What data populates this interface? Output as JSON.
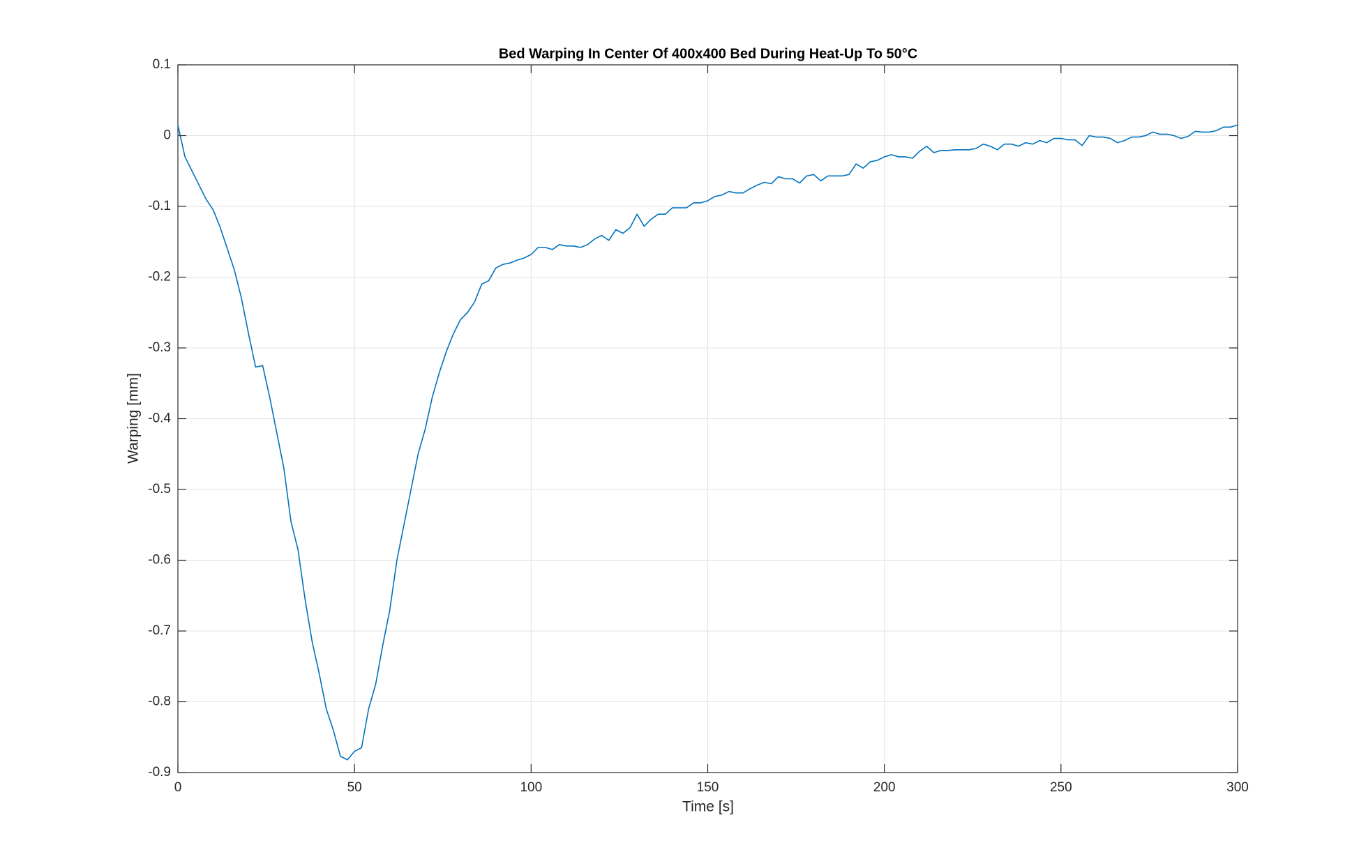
{
  "chart_data": {
    "type": "line",
    "title": "Bed Warping In Center Of 400x400 Bed During Heat-Up To 50°C",
    "x_label": "Time [s]",
    "y_label": "Warping [mm]",
    "x": [
      0,
      2,
      4,
      6,
      8,
      10,
      12,
      14,
      16,
      18,
      20,
      22,
      24,
      26,
      28,
      30,
      32,
      34,
      36,
      38,
      40,
      42,
      44,
      46,
      48,
      50,
      52,
      54,
      56,
      58,
      60,
      62,
      64,
      66,
      68,
      70,
      72,
      74,
      76,
      78,
      80,
      82,
      84,
      86,
      88,
      90,
      92,
      94,
      96,
      98,
      100,
      102,
      104,
      106,
      108,
      110,
      112,
      114,
      116,
      118,
      120,
      122,
      124,
      126,
      128,
      130,
      132,
      134,
      136,
      138,
      140,
      142,
      144,
      146,
      148,
      150,
      152,
      154,
      156,
      158,
      160,
      162,
      164,
      166,
      168,
      170,
      172,
      174,
      176,
      178,
      180,
      182,
      184,
      186,
      188,
      190,
      192,
      194,
      196,
      198,
      200,
      202,
      204,
      206,
      208,
      210,
      212,
      214,
      216,
      218,
      220,
      222,
      224,
      226,
      228,
      230,
      232,
      234,
      236,
      238,
      240,
      242,
      244,
      246,
      248,
      250,
      252,
      254,
      256,
      258,
      260,
      262,
      264,
      266,
      268,
      270,
      272,
      274,
      276,
      278,
      280,
      282,
      284,
      286,
      288,
      290,
      292,
      294,
      296,
      298,
      300
    ],
    "series": [
      {
        "color": "#0072bd",
        "values": [
          0.015,
          -0.03,
          -0.05,
          -0.07,
          -0.09,
          -0.105,
          -0.13,
          -0.16,
          -0.19,
          -0.23,
          -0.28,
          -0.327,
          -0.325,
          -0.37,
          -0.42,
          -0.47,
          -0.545,
          -0.585,
          -0.655,
          -0.715,
          -0.76,
          -0.81,
          -0.84,
          -0.877,
          -0.882,
          -0.87,
          -0.865,
          -0.81,
          -0.775,
          -0.72,
          -0.67,
          -0.6,
          -0.55,
          -0.5,
          -0.45,
          -0.415,
          -0.37,
          -0.335,
          -0.305,
          -0.28,
          -0.26,
          -0.25,
          -0.235,
          -0.21,
          -0.205,
          -0.187,
          -0.182,
          -0.18,
          -0.176,
          -0.173,
          -0.168,
          -0.158,
          -0.158,
          -0.161,
          -0.154,
          -0.156,
          -0.156,
          -0.158,
          -0.154,
          -0.146,
          -0.141,
          -0.148,
          -0.133,
          -0.138,
          -0.13,
          -0.111,
          -0.128,
          -0.118,
          -0.111,
          -0.111,
          -0.102,
          -0.102,
          -0.102,
          -0.095,
          -0.095,
          -0.092,
          -0.086,
          -0.084,
          -0.079,
          -0.081,
          -0.081,
          -0.075,
          -0.07,
          -0.066,
          -0.068,
          -0.058,
          -0.061,
          -0.061,
          -0.067,
          -0.057,
          -0.055,
          -0.064,
          -0.057,
          -0.057,
          -0.057,
          -0.055,
          -0.04,
          -0.046,
          -0.037,
          -0.035,
          -0.03,
          -0.027,
          -0.03,
          -0.03,
          -0.032,
          -0.022,
          -0.015,
          -0.024,
          -0.021,
          -0.021,
          -0.02,
          -0.02,
          -0.02,
          -0.018,
          -0.012,
          -0.015,
          -0.02,
          -0.012,
          -0.012,
          -0.015,
          -0.01,
          -0.012,
          -0.007,
          -0.01,
          -0.004,
          -0.004,
          -0.006,
          -0.006,
          -0.014,
          0,
          -0.002,
          -0.002,
          -0.004,
          -0.01,
          -0.007,
          -0.002,
          -0.002,
          0,
          0.005,
          0.002,
          0.002,
          0,
          -0.004,
          -0.001,
          0.006,
          0.005,
          0.005,
          0.007,
          0.012,
          0.012,
          0.015
        ]
      }
    ],
    "xlim": [
      0,
      300
    ],
    "xticks": [
      0,
      50,
      100,
      150,
      200,
      250,
      300
    ],
    "ylim": [
      -0.9,
      0.1
    ],
    "yticks": [
      0.1,
      0,
      -0.1,
      -0.2,
      -0.3,
      -0.4,
      -0.5,
      -0.6,
      -0.7,
      -0.8,
      -0.9
    ],
    "grid": true
  }
}
